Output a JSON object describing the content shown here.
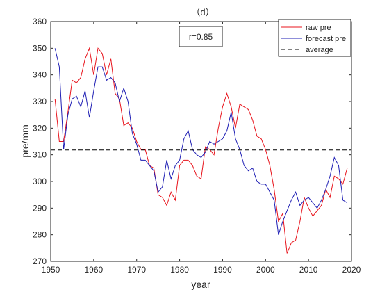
{
  "chart_data": {
    "type": "line",
    "title": "（d）",
    "xlabel": "year",
    "ylabel": "pre/mm",
    "xlim": [
      1950,
      2020
    ],
    "ylim": [
      270,
      360
    ],
    "xticks": [
      1950,
      1960,
      1970,
      1980,
      1990,
      2000,
      2010,
      2020
    ],
    "yticks": [
      270,
      280,
      290,
      300,
      310,
      320,
      330,
      340,
      350,
      360
    ],
    "grid": false,
    "legend_position": "top-right",
    "annotation": "r=0.85",
    "series": [
      {
        "name": "raw pre",
        "color": "#e8141c",
        "style": "solid",
        "x": [
          1951,
          1952,
          1953,
          1954,
          1955,
          1956,
          1957,
          1958,
          1959,
          1960,
          1961,
          1962,
          1963,
          1964,
          1965,
          1966,
          1967,
          1968,
          1969,
          1970,
          1971,
          1972,
          1973,
          1974,
          1975,
          1976,
          1977,
          1978,
          1979,
          1980,
          1981,
          1982,
          1983,
          1984,
          1985,
          1986,
          1987,
          1988,
          1989,
          1990,
          1991,
          1992,
          1993,
          1994,
          1995,
          1996,
          1997,
          1998,
          1999,
          2000,
          2001,
          2002,
          2003,
          2004,
          2005,
          2006,
          2007,
          2008,
          2009,
          2010,
          2011,
          2012,
          2013,
          2014,
          2015,
          2016,
          2017,
          2018,
          2019
        ],
        "values": [
          331,
          315,
          315,
          326,
          338,
          337,
          339,
          346,
          350,
          340,
          350,
          348,
          340,
          346,
          333,
          331,
          321,
          322,
          320,
          315,
          312,
          312,
          306,
          305,
          295,
          294,
          291,
          296,
          293,
          306,
          308,
          308,
          306,
          302,
          301,
          313,
          312,
          310,
          320,
          328,
          333,
          328,
          320,
          329,
          328,
          327,
          323,
          317,
          316,
          312,
          306,
          297,
          285,
          288,
          273,
          277,
          278,
          285,
          294,
          290,
          287,
          289,
          291,
          297,
          294,
          302,
          301,
          299,
          305
        ]
      },
      {
        "name": "forecast pre",
        "color": "#1f1fb4",
        "style": "solid",
        "x": [
          1951,
          1952,
          1953,
          1954,
          1955,
          1956,
          1957,
          1958,
          1959,
          1960,
          1961,
          1962,
          1963,
          1964,
          1965,
          1966,
          1967,
          1968,
          1969,
          1970,
          1971,
          1972,
          1973,
          1974,
          1975,
          1976,
          1977,
          1978,
          1979,
          1980,
          1981,
          1982,
          1983,
          1984,
          1985,
          1986,
          1987,
          1988,
          1989,
          1990,
          1991,
          1992,
          1993,
          1994,
          1995,
          1996,
          1997,
          1998,
          1999,
          2000,
          2001,
          2002,
          2003,
          2004,
          2005,
          2006,
          2007,
          2008,
          2009,
          2010,
          2011,
          2012,
          2013,
          2014,
          2015,
          2016,
          2017,
          2018,
          2019
        ],
        "values": [
          350,
          343,
          312,
          325,
          331,
          332,
          328,
          334,
          324,
          334,
          343,
          343,
          338,
          339,
          337,
          330,
          335,
          330,
          318,
          314,
          308,
          308,
          306,
          304,
          296,
          298,
          308,
          301,
          306,
          308,
          316,
          319,
          312,
          310,
          309,
          311,
          315,
          314,
          315,
          316,
          319,
          326,
          316,
          312,
          306,
          304,
          305,
          300,
          299,
          299,
          296,
          293,
          280,
          285,
          289,
          293,
          296,
          291,
          293,
          294,
          292,
          290,
          293,
          297,
          302,
          309,
          306,
          293,
          292
        ]
      },
      {
        "name": "average",
        "color": "#000000",
        "style": "dashed",
        "x": [
          1950,
          2020
        ],
        "values": [
          311.8,
          311.8
        ]
      }
    ]
  }
}
